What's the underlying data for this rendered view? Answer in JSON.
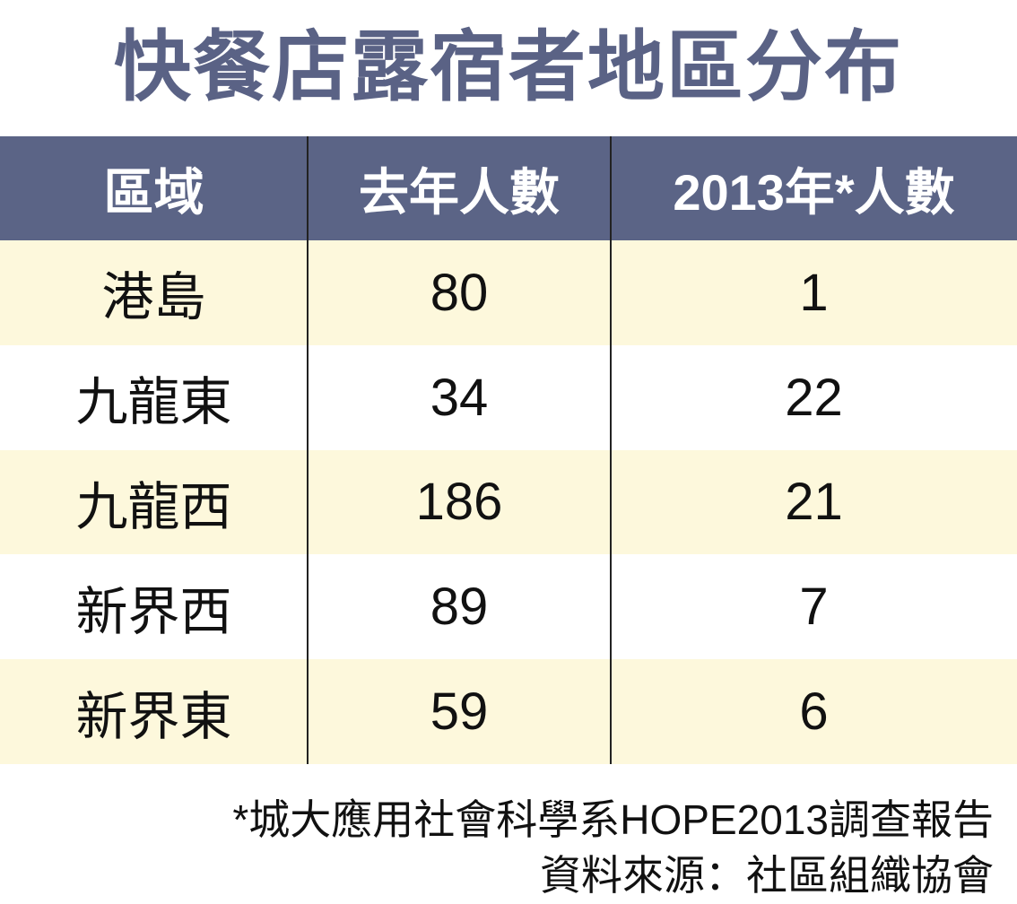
{
  "title": "快餐店露宿者地區分布",
  "table": {
    "header": [
      "區域",
      "去年人數",
      "2013年*人數"
    ],
    "rows": [
      [
        "港島",
        80,
        1
      ],
      [
        "九龍東",
        34,
        22
      ],
      [
        "九龍西",
        186,
        21
      ],
      [
        "新界西",
        89,
        7
      ],
      [
        "新界東",
        59,
        6
      ]
    ]
  },
  "footnotes": [
    "*城大應用社會科學系HOPE2013調查報告",
    "資料來源：社區組織協會"
  ]
}
